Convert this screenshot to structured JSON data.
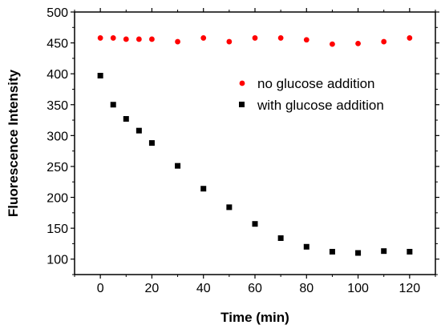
{
  "chart_data": {
    "type": "scatter",
    "xlabel": "Time (min)",
    "ylabel": "Fluorescence Intensity",
    "xlim": [
      -10,
      130
    ],
    "ylim": [
      75,
      500
    ],
    "xticks": [
      0,
      20,
      40,
      60,
      80,
      100,
      120
    ],
    "yticks": [
      100,
      150,
      200,
      250,
      300,
      350,
      400,
      450,
      500
    ],
    "grid": false,
    "legend_position": "upper-right",
    "series": [
      {
        "name": "no glucose addition",
        "marker": "circle",
        "color": "#ff0000",
        "x": [
          0,
          5,
          10,
          15,
          20,
          30,
          40,
          50,
          60,
          70,
          80,
          90,
          100,
          110,
          120
        ],
        "y": [
          458,
          458,
          456,
          456,
          456,
          452,
          458,
          452,
          458,
          458,
          455,
          448,
          449,
          452,
          458
        ]
      },
      {
        "name": "with glucose addition",
        "marker": "square",
        "color": "#000000",
        "x": [
          0,
          5,
          10,
          15,
          20,
          30,
          40,
          50,
          60,
          70,
          80,
          90,
          100,
          110,
          120
        ],
        "y": [
          397,
          350,
          327,
          308,
          288,
          251,
          214,
          184,
          157,
          134,
          120,
          112,
          110,
          113,
          112
        ]
      }
    ]
  }
}
